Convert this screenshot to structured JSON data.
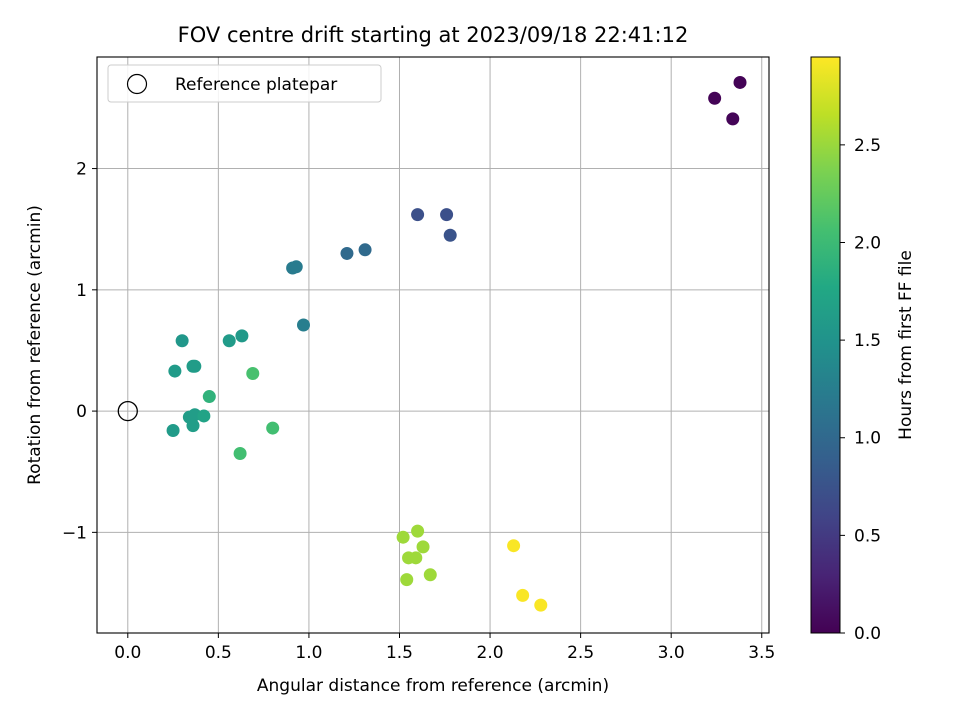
{
  "chart_data": {
    "type": "scatter",
    "title": "FOV centre drift starting at 2023/09/18 22:41:12",
    "xlabel": "Angular distance from reference (arcmin)",
    "ylabel": "Rotation from reference (arcmin)",
    "xlim": [
      -0.17,
      3.54
    ],
    "ylim": [
      -1.83,
      2.92
    ],
    "xticks": [
      0.0,
      0.5,
      1.0,
      1.5,
      2.0,
      2.5,
      3.0,
      3.5
    ],
    "xtick_labels": [
      "0.0",
      "0.5",
      "1.0",
      "1.5",
      "2.0",
      "2.5",
      "3.0",
      "3.5"
    ],
    "yticks": [
      -1,
      0,
      1,
      2
    ],
    "ytick_labels": [
      "−1",
      "0",
      "1",
      "2"
    ],
    "grid": true,
    "legend": {
      "placement": "top-left",
      "entries": [
        "Reference platepar"
      ]
    },
    "reference_point": {
      "x": 0.0,
      "y": 0.0
    },
    "colorbar": {
      "label": "Hours from first FF file",
      "colormap": "viridis",
      "range": [
        0.0,
        2.95
      ],
      "ticks": [
        0.0,
        0.5,
        1.0,
        1.5,
        2.0,
        2.5
      ],
      "tick_labels": [
        "0.0",
        "0.5",
        "1.0",
        "1.5",
        "2.0",
        "2.5"
      ]
    },
    "points": [
      {
        "x": 3.24,
        "y": 2.58,
        "c": 0.02
      },
      {
        "x": 3.38,
        "y": 2.71,
        "c": 0.02
      },
      {
        "x": 3.34,
        "y": 2.41,
        "c": 0.03
      },
      {
        "x": 1.6,
        "y": 1.62,
        "c": 0.72
      },
      {
        "x": 1.76,
        "y": 1.62,
        "c": 0.72
      },
      {
        "x": 1.78,
        "y": 1.45,
        "c": 0.75
      },
      {
        "x": 1.21,
        "y": 1.3,
        "c": 1.02
      },
      {
        "x": 1.31,
        "y": 1.33,
        "c": 1.02
      },
      {
        "x": 0.91,
        "y": 1.18,
        "c": 1.22
      },
      {
        "x": 0.93,
        "y": 1.19,
        "c": 1.22
      },
      {
        "x": 0.97,
        "y": 0.71,
        "c": 1.25
      },
      {
        "x": 0.3,
        "y": 0.58,
        "c": 1.55
      },
      {
        "x": 0.56,
        "y": 0.58,
        "c": 1.6
      },
      {
        "x": 0.63,
        "y": 0.62,
        "c": 1.58
      },
      {
        "x": 0.36,
        "y": 0.37,
        "c": 1.62
      },
      {
        "x": 0.37,
        "y": 0.37,
        "c": 1.62
      },
      {
        "x": 0.26,
        "y": 0.33,
        "c": 1.6
      },
      {
        "x": 0.25,
        "y": -0.16,
        "c": 1.6
      },
      {
        "x": 0.34,
        "y": -0.05,
        "c": 1.63
      },
      {
        "x": 0.37,
        "y": -0.03,
        "c": 1.63
      },
      {
        "x": 0.36,
        "y": -0.12,
        "c": 1.63
      },
      {
        "x": 0.42,
        "y": -0.04,
        "c": 1.7
      },
      {
        "x": 0.45,
        "y": 0.12,
        "c": 1.9
      },
      {
        "x": 0.69,
        "y": 0.31,
        "c": 2.08
      },
      {
        "x": 0.8,
        "y": -0.14,
        "c": 2.05
      },
      {
        "x": 0.62,
        "y": -0.35,
        "c": 2.05
      },
      {
        "x": 1.52,
        "y": -1.04,
        "c": 2.52
      },
      {
        "x": 1.6,
        "y": -0.99,
        "c": 2.52
      },
      {
        "x": 1.63,
        "y": -1.12,
        "c": 2.52
      },
      {
        "x": 1.55,
        "y": -1.21,
        "c": 2.52
      },
      {
        "x": 1.59,
        "y": -1.21,
        "c": 2.52
      },
      {
        "x": 1.54,
        "y": -1.39,
        "c": 2.52
      },
      {
        "x": 1.67,
        "y": -1.35,
        "c": 2.52
      },
      {
        "x": 2.13,
        "y": -1.11,
        "c": 2.93
      },
      {
        "x": 2.18,
        "y": -1.52,
        "c": 2.93
      },
      {
        "x": 2.28,
        "y": -1.6,
        "c": 2.93
      }
    ]
  }
}
